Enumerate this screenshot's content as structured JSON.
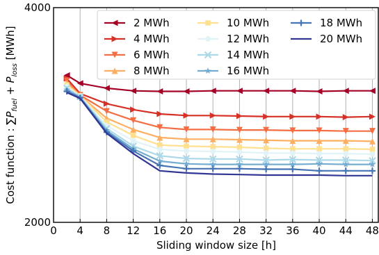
{
  "chart_data": {
    "type": "line",
    "xlabel": "Sliding window size [h]",
    "ylabel_prefix": "Cost function : ",
    "ylabel_sum": "∑",
    "ylabel_p1": "P",
    "ylabel_sub1": "fuel",
    "ylabel_plus": " + ",
    "ylabel_p2": "P",
    "ylabel_sub2": "loss",
    "ylabel_unit": " [MWh]",
    "x": [
      2,
      4,
      8,
      12,
      16,
      20,
      24,
      28,
      32,
      36,
      40,
      44,
      48
    ],
    "x_ticks": [
      0,
      4,
      8,
      12,
      16,
      20,
      24,
      28,
      32,
      36,
      40,
      44,
      48
    ],
    "xlim": [
      0,
      49
    ],
    "y_ticks": [
      2000,
      4000
    ],
    "ylim": [
      2000,
      4000
    ],
    "grid": "vertical",
    "legend_position": "top-right",
    "legend_columns": 3,
    "series": [
      {
        "name": "2 MWh",
        "color": "#a50026",
        "marker": "triangle-left",
        "values": [
          3370,
          3295,
          3250,
          3225,
          3220,
          3220,
          3225,
          3225,
          3225,
          3225,
          3220,
          3225,
          3225
        ]
      },
      {
        "name": "4 MWh",
        "color": "#d73027",
        "marker": "triangle-right",
        "values": [
          3340,
          3200,
          3105,
          3050,
          3010,
          2995,
          2995,
          2990,
          2985,
          2985,
          2985,
          2980,
          2985
        ]
      },
      {
        "name": "6 MWh",
        "color": "#f46d43",
        "marker": "triangle-down",
        "values": [
          3320,
          3185,
          3035,
          2950,
          2885,
          2865,
          2865,
          2860,
          2860,
          2855,
          2855,
          2850,
          2850
        ]
      },
      {
        "name": "8 MWh",
        "color": "#fdae61",
        "marker": "triangle-up",
        "values": [
          3300,
          3180,
          2970,
          2865,
          2790,
          2775,
          2775,
          2770,
          2765,
          2760,
          2760,
          2760,
          2755
        ]
      },
      {
        "name": "10 MWh",
        "color": "#fee090",
        "marker": "square",
        "values": [
          3280,
          3180,
          2935,
          2810,
          2720,
          2710,
          2705,
          2700,
          2690,
          2685,
          2685,
          2685,
          2680
        ]
      },
      {
        "name": "12 MWh",
        "color": "#e0f3f8",
        "marker": "pentagon",
        "values": [
          3265,
          3175,
          2900,
          2760,
          2680,
          2665,
          2660,
          2655,
          2645,
          2645,
          2640,
          2640,
          2635
        ]
      },
      {
        "name": "14 MWh",
        "color": "#abd9e9",
        "marker": "x",
        "values": [
          3250,
          3170,
          2875,
          2710,
          2620,
          2595,
          2590,
          2590,
          2580,
          2585,
          2580,
          2580,
          2575
        ]
      },
      {
        "name": "16 MWh",
        "color": "#74add1",
        "marker": "star",
        "values": [
          3235,
          3165,
          2855,
          2685,
          2570,
          2545,
          2540,
          2540,
          2540,
          2540,
          2545,
          2540,
          2540
        ]
      },
      {
        "name": "18 MWh",
        "color": "#4575b4",
        "marker": "plus",
        "values": [
          3220,
          3160,
          2840,
          2665,
          2530,
          2500,
          2500,
          2500,
          2495,
          2495,
          2480,
          2480,
          2480
        ]
      },
      {
        "name": "20 MWh",
        "color": "#313695",
        "marker": "none",
        "values": [
          3210,
          3155,
          2830,
          2640,
          2480,
          2460,
          2450,
          2445,
          2440,
          2440,
          2440,
          2435,
          2435
        ]
      }
    ]
  }
}
